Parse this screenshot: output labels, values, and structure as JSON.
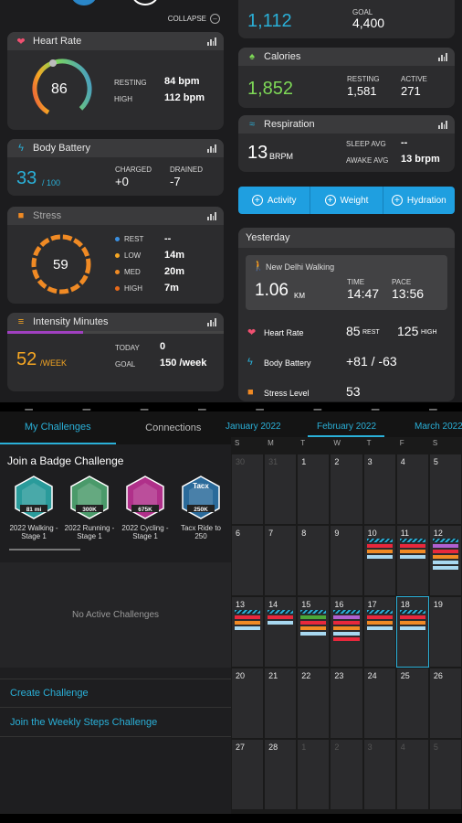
{
  "left_top": {
    "collapse_label": "COLLAPSE",
    "heart_rate": {
      "title": "Heart Rate",
      "value": "86",
      "resting_label": "RESTING",
      "resting_value": "84 bpm",
      "high_label": "HIGH",
      "high_value": "112 bpm"
    },
    "body_battery": {
      "title": "Body Battery",
      "value": "33",
      "max": "/ 100",
      "charged_label": "CHARGED",
      "charged_value": "+0",
      "drained_label": "DRAINED",
      "drained_value": "-7"
    },
    "stress": {
      "title": "Stress",
      "value": "59",
      "rows": [
        {
          "label": "REST",
          "value": "--",
          "color": "#3a8fe0"
        },
        {
          "label": "LOW",
          "value": "14m",
          "color": "#f5a623"
        },
        {
          "label": "MED",
          "value": "20m",
          "color": "#f08a24"
        },
        {
          "label": "HIGH",
          "value": "7m",
          "color": "#e86a1a"
        }
      ]
    },
    "intensity": {
      "title": "Intensity Minutes",
      "value": "52",
      "unit": "/WEEK",
      "today_label": "TODAY",
      "today_value": "0",
      "goal_label": "GOAL",
      "goal_value": "150 /week"
    }
  },
  "right_top": {
    "steps": {
      "value": "1,112",
      "goal_label": "GOAL",
      "goal_value": "4,400"
    },
    "calories": {
      "title": "Calories",
      "value": "1,852",
      "resting_label": "RESTING",
      "resting_value": "1,581",
      "active_label": "ACTIVE",
      "active_value": "271"
    },
    "respiration": {
      "title": "Respiration",
      "value": "13",
      "unit": "BRPM",
      "sleep_label": "SLEEP AVG",
      "sleep_value": "--",
      "awake_label": "AWAKE AVG",
      "awake_value": "13 brpm"
    },
    "actions": [
      "Activity",
      "Weight",
      "Hydration"
    ],
    "yesterday": {
      "title": "Yesterday",
      "activity": {
        "name": "New Delhi Walking",
        "distance": "1.06",
        "unit": "KM",
        "time_label": "TIME",
        "time_value": "14:47",
        "pace_label": "PACE",
        "pace_value": "13:56"
      },
      "rows": [
        {
          "label": "Heart Rate",
          "value": "85",
          "sub": "REST",
          "value2": "125",
          "sub2": "HIGH"
        },
        {
          "label": "Body Battery",
          "value": "+81 / -63"
        },
        {
          "label": "Stress Level",
          "value": "53"
        }
      ]
    }
  },
  "challenges": {
    "tabs": [
      "My Challenges",
      "Connections"
    ],
    "section_title": "Join a Badge Challenge",
    "badges": [
      {
        "label": "2022 Walking - Stage 1",
        "badge_text": "81 mi",
        "color": "#2a9b9b"
      },
      {
        "label": "2022 Running - Stage 1",
        "badge_text": "300K",
        "color": "#4a9a6a"
      },
      {
        "label": "2022 Cycling - Stage 1",
        "badge_text": "675K",
        "color": "#b0308a"
      },
      {
        "label": "Tacx Ride to 250",
        "badge_text": "250K",
        "color": "#2a6a9a",
        "logo": "Tacx"
      }
    ],
    "empty_text": "No Active Challenges",
    "links": [
      "Create Challenge",
      "Join the Weekly Steps Challenge"
    ]
  },
  "calendar": {
    "months": [
      "January 2022",
      "February 2022",
      "March 2022"
    ],
    "weekdays": [
      "S",
      "M",
      "T",
      "W",
      "T",
      "F",
      "S"
    ],
    "weeks": [
      [
        "30",
        "31",
        "1",
        "2",
        "3",
        "4",
        "5"
      ],
      [
        "6",
        "7",
        "8",
        "9",
        "10",
        "11",
        "12"
      ],
      [
        "13",
        "14",
        "15",
        "16",
        "17",
        "18",
        "19"
      ],
      [
        "20",
        "21",
        "22",
        "23",
        "24",
        "25",
        "26"
      ],
      [
        "27",
        "28",
        "1",
        "2",
        "3",
        "4",
        "5"
      ]
    ]
  },
  "colors": {
    "accent": "#2ab0d8",
    "green": "#7ed957",
    "orange": "#f5a623",
    "card": "#2c2c2e"
  }
}
